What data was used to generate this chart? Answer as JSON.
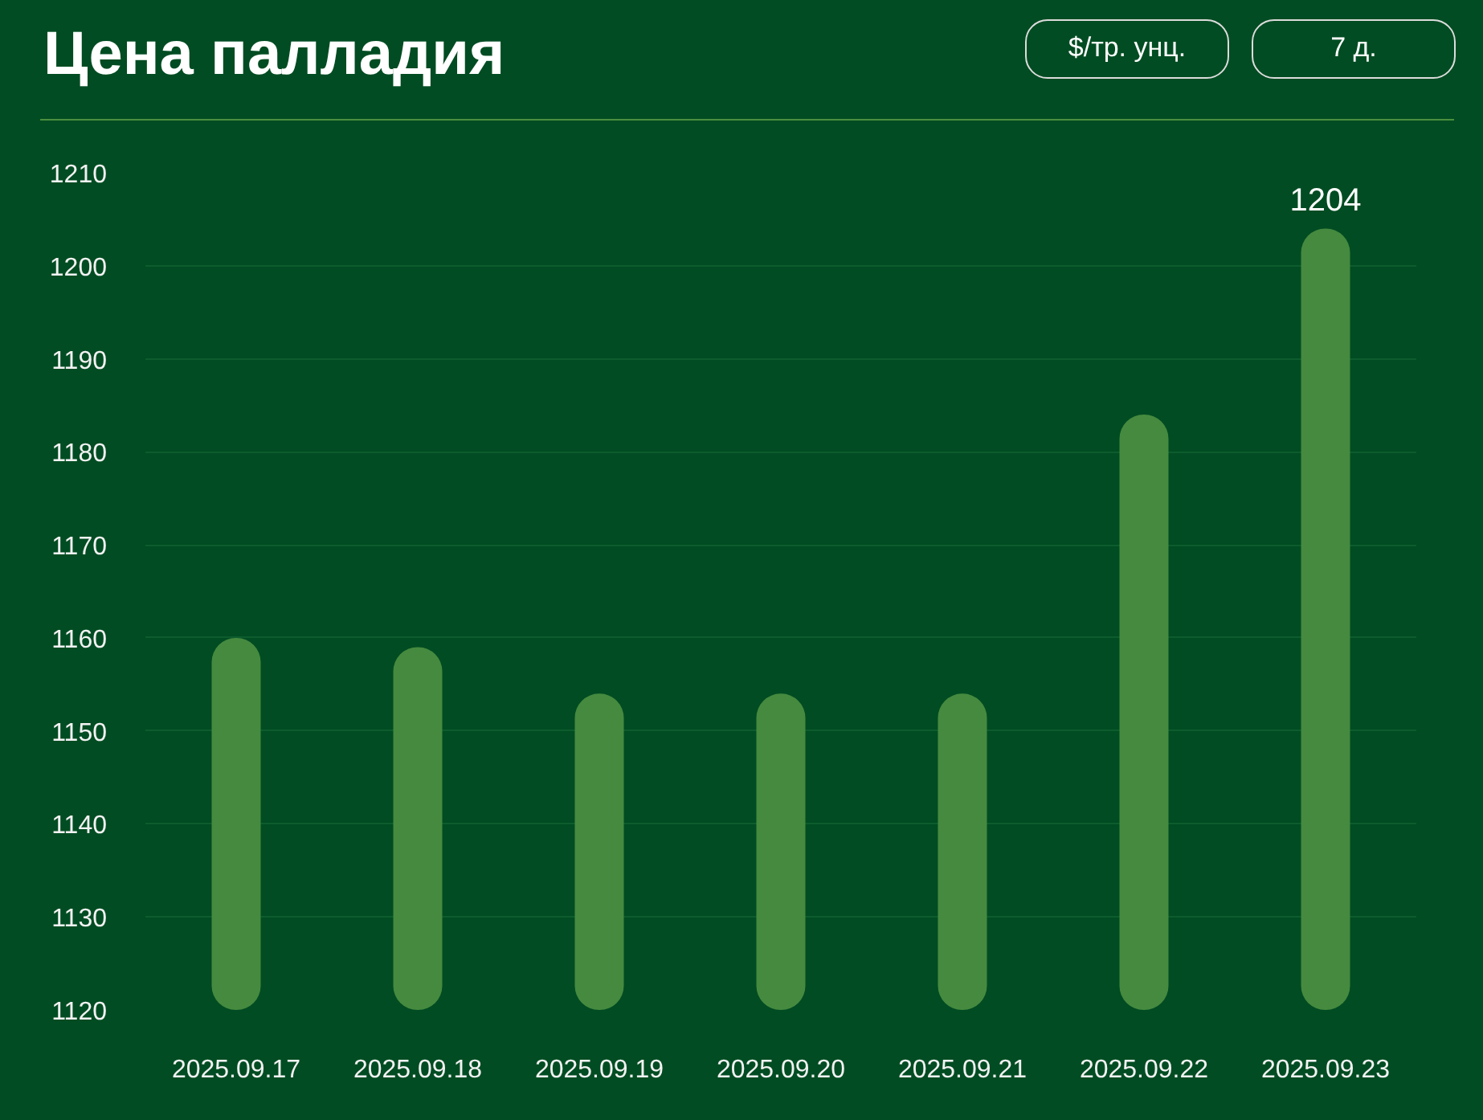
{
  "chart_data": {
    "type": "bar",
    "title": "Цена палладия",
    "annotations": [
      "$/тр. унц.",
      "7 д."
    ],
    "categories": [
      "2025.09.17",
      "2025.09.18",
      "2025.09.19",
      "2025.09.20",
      "2025.09.21",
      "2025.09.22",
      "2025.09.23"
    ],
    "values": [
      1160,
      1159,
      1154,
      1154,
      1154,
      1184,
      1204
    ],
    "value_labels": [
      null,
      null,
      null,
      null,
      null,
      null,
      "1204"
    ],
    "color": "#458a3f",
    "ylim": [
      1120,
      1210
    ],
    "yticks": [
      1120,
      1130,
      1140,
      1150,
      1160,
      1170,
      1180,
      1190,
      1200,
      1210
    ],
    "grid": "y"
  }
}
